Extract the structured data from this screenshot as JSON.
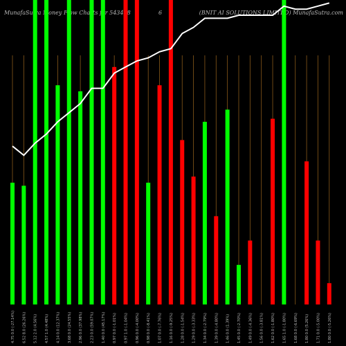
{
  "chart_data": {
    "type": "bar",
    "title_left": "MunafaSutra Money Flow Charts for 543428",
    "title_mid": "6",
    "title_right": "(BNIT AI SOLUTIONS LIMITED) MunafaSutra.com",
    "categories": [
      "4.75 0.0 (-27.14%)",
      "6.52 8.0 (26.26%)",
      "5.12 2.0 (4.56%)",
      "4.57 1.0 (4.48%)",
      "4.14 0.0 (12.37%)",
      "3.68 0.0 (24.55%)",
      "2.96 0.0 (37.98%)",
      "2.23 0.0 (59.07%)",
      "1.40 0.0 (45.17%)",
      "0.97 0.0 (-1.01%)",
      "0.97 1.0 (-1.04%)",
      "0.96 0.0 (-4.00%)",
      "0.98 0.0 (-8.41%)",
      "1.07 0.0 (-7.76%)",
      "1.16 0.0 (-9.25%)",
      "1.28 0.0 (-1.54%)",
      "1.29 0.0 (-3.33%)",
      "1.34 0.0 (-2.79%)",
      "1.39 0.0 (-4.80%)",
      "1.46 0.0 (1.39%)",
      "1.45 0.0 (-2.70%)",
      "1.49 0.0 (-4.36%)",
      "1.56 0.0 (-3.81%)",
      "1.62 0.0 (-1.80%)",
      "1.65 1.0 (-1.80%)",
      "1.68 0.0 (-6.69%)",
      "1.80 0.0 (5.26%)",
      "1.71 0.0 (-5.00%)",
      "1.80 0.0 (-5.26%)"
    ],
    "values": [
      40,
      39,
      100,
      100,
      72,
      100,
      70,
      100,
      100,
      78,
      100,
      100,
      40,
      72,
      100,
      54,
      42,
      60,
      29,
      64,
      13,
      21,
      0,
      61,
      100,
      0,
      47,
      21,
      7
    ],
    "colors": [
      "green",
      "green",
      "green",
      "green",
      "green",
      "green",
      "green",
      "green",
      "green",
      "red",
      "red",
      "red",
      "green",
      "red",
      "red",
      "red",
      "red",
      "green",
      "red",
      "green",
      "green",
      "red",
      "red",
      "red",
      "green",
      "red",
      "red",
      "red",
      "red"
    ],
    "line": [
      52,
      49,
      53,
      56,
      60,
      63,
      66,
      71,
      71,
      76,
      78,
      80,
      81,
      83,
      84,
      89,
      91,
      94,
      94,
      94,
      95,
      95,
      95,
      95,
      98,
      97,
      97,
      98,
      99
    ],
    "color_up": "#00ff00",
    "color_down": "#ff0000",
    "grid_color": "#8a5a1a",
    "line_color": "#ffffff"
  }
}
